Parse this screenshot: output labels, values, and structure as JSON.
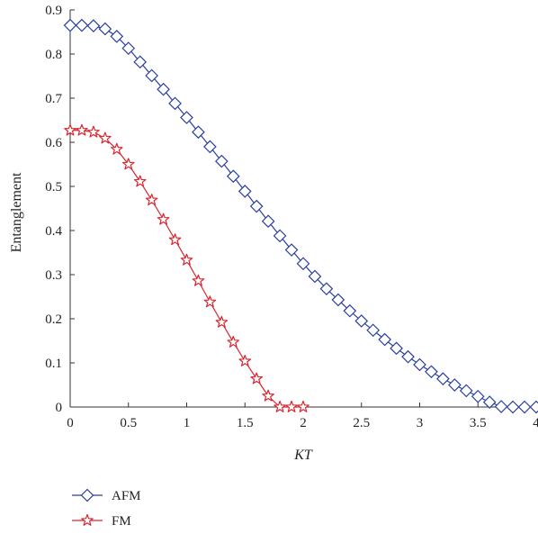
{
  "chart_data": {
    "type": "line",
    "xlabel": "KT",
    "ylabel": "Entanglement",
    "xlim": [
      0,
      4
    ],
    "ylim": [
      0,
      0.9
    ],
    "x_ticks": [
      0,
      0.5,
      1,
      1.5,
      2,
      2.5,
      3,
      3.5,
      4
    ],
    "x_tick_labels": [
      "0",
      "0.5",
      "1",
      "1.5",
      "2",
      "2.5",
      "3",
      "3.5",
      "4"
    ],
    "y_ticks": [
      0,
      0.1,
      0.2,
      0.3,
      0.4,
      0.5,
      0.6,
      0.7,
      0.8,
      0.9
    ],
    "y_tick_labels": [
      "0",
      "0.1",
      "0.2",
      "0.3",
      "0.4",
      "0.5",
      "0.6",
      "0.7",
      "0.8",
      "0.9"
    ],
    "grid": false,
    "legend_position": "below-left",
    "series": [
      {
        "name": "AFM",
        "color": "#2a3f9e",
        "marker": "diamond",
        "x": [
          0,
          0.1,
          0.2,
          0.3,
          0.4,
          0.5,
          0.6,
          0.7,
          0.8,
          0.9,
          1.0,
          1.1,
          1.2,
          1.3,
          1.4,
          1.5,
          1.6,
          1.7,
          1.8,
          1.9,
          2.0,
          2.1,
          2.2,
          2.3,
          2.4,
          2.5,
          2.6,
          2.7,
          2.8,
          2.9,
          3.0,
          3.1,
          3.2,
          3.3,
          3.4,
          3.5,
          3.6,
          3.7,
          3.8,
          3.9,
          4.0
        ],
        "y": [
          0.865,
          0.865,
          0.864,
          0.857,
          0.84,
          0.813,
          0.782,
          0.751,
          0.72,
          0.688,
          0.656,
          0.623,
          0.59,
          0.557,
          0.523,
          0.489,
          0.455,
          0.421,
          0.388,
          0.356,
          0.325,
          0.296,
          0.268,
          0.243,
          0.218,
          0.195,
          0.174,
          0.153,
          0.133,
          0.114,
          0.096,
          0.08,
          0.064,
          0.05,
          0.037,
          0.024,
          0.011,
          0.001,
          0.0,
          0.0,
          0.0
        ]
      },
      {
        "name": "FM",
        "color": "#d9262e",
        "marker": "star",
        "x": [
          0,
          0.1,
          0.2,
          0.3,
          0.4,
          0.5,
          0.6,
          0.7,
          0.8,
          0.9,
          1.0,
          1.1,
          1.2,
          1.3,
          1.4,
          1.5,
          1.6,
          1.7,
          1.8,
          1.9,
          2.0
        ],
        "y": [
          0.627,
          0.627,
          0.623,
          0.609,
          0.584,
          0.55,
          0.511,
          0.469,
          0.425,
          0.379,
          0.333,
          0.286,
          0.238,
          0.192,
          0.147,
          0.104,
          0.064,
          0.025,
          0.0,
          0.0,
          0.0
        ]
      }
    ]
  }
}
